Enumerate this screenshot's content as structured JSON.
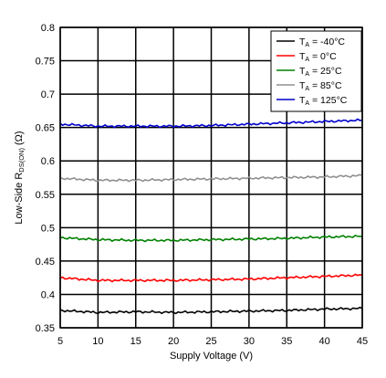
{
  "chart_data": {
    "type": "line",
    "title": "",
    "xlabel": "Supply Voltage (V)",
    "ylabel": "Low-Side R",
    "ylabel_sub": "DS(ON)",
    "ylabel_unit": " (Ω)",
    "xlim": [
      5,
      45
    ],
    "ylim": [
      0.35,
      0.8
    ],
    "xticks": [
      5,
      10,
      15,
      20,
      25,
      30,
      35,
      40,
      45
    ],
    "xtick_labels": [
      "5",
      "10",
      "15",
      "20",
      "25",
      "30",
      "35",
      "40",
      "45"
    ],
    "yticks": [
      0.35,
      0.4,
      0.45,
      0.5,
      0.55,
      0.6,
      0.65,
      0.7,
      0.75,
      0.8
    ],
    "ytick_labels": [
      "0.35",
      "0.4",
      "0.45",
      "0.5",
      "0.55",
      "0.6",
      "0.65",
      "0.7",
      "0.75",
      "0.8"
    ],
    "grid": true,
    "legend_position": "top-right",
    "x": [
      5,
      10,
      15,
      20,
      25,
      30,
      35,
      40,
      45
    ],
    "series": [
      {
        "name": "-40°C",
        "legend_main": "T",
        "legend_sub": "A",
        "legend_rest": " = -40°C",
        "color": "#000000",
        "values": [
          0.376,
          0.373,
          0.374,
          0.373,
          0.374,
          0.375,
          0.376,
          0.378,
          0.379
        ]
      },
      {
        "name": "0°C",
        "legend_main": "T",
        "legend_sub": "A",
        "legend_rest": " = 0°C",
        "color": "#ff0000",
        "values": [
          0.425,
          0.421,
          0.421,
          0.421,
          0.422,
          0.423,
          0.425,
          0.427,
          0.429
        ]
      },
      {
        "name": "25°C",
        "legend_main": "T",
        "legend_sub": "A",
        "legend_rest": " = 25°C",
        "color": "#008000",
        "values": [
          0.485,
          0.482,
          0.481,
          0.481,
          0.482,
          0.483,
          0.484,
          0.486,
          0.487
        ]
      },
      {
        "name": "85°C",
        "legend_main": "T",
        "legend_sub": "A",
        "legend_rest": " = 85°C",
        "color": "#909090",
        "values": [
          0.574,
          0.571,
          0.571,
          0.572,
          0.573,
          0.574,
          0.575,
          0.576,
          0.578
        ]
      },
      {
        "name": "125°C",
        "legend_main": "T",
        "legend_sub": "A",
        "legend_rest": " = 125°C",
        "color": "#0000cc",
        "values": [
          0.655,
          0.652,
          0.652,
          0.652,
          0.653,
          0.655,
          0.657,
          0.659,
          0.661
        ]
      }
    ]
  }
}
